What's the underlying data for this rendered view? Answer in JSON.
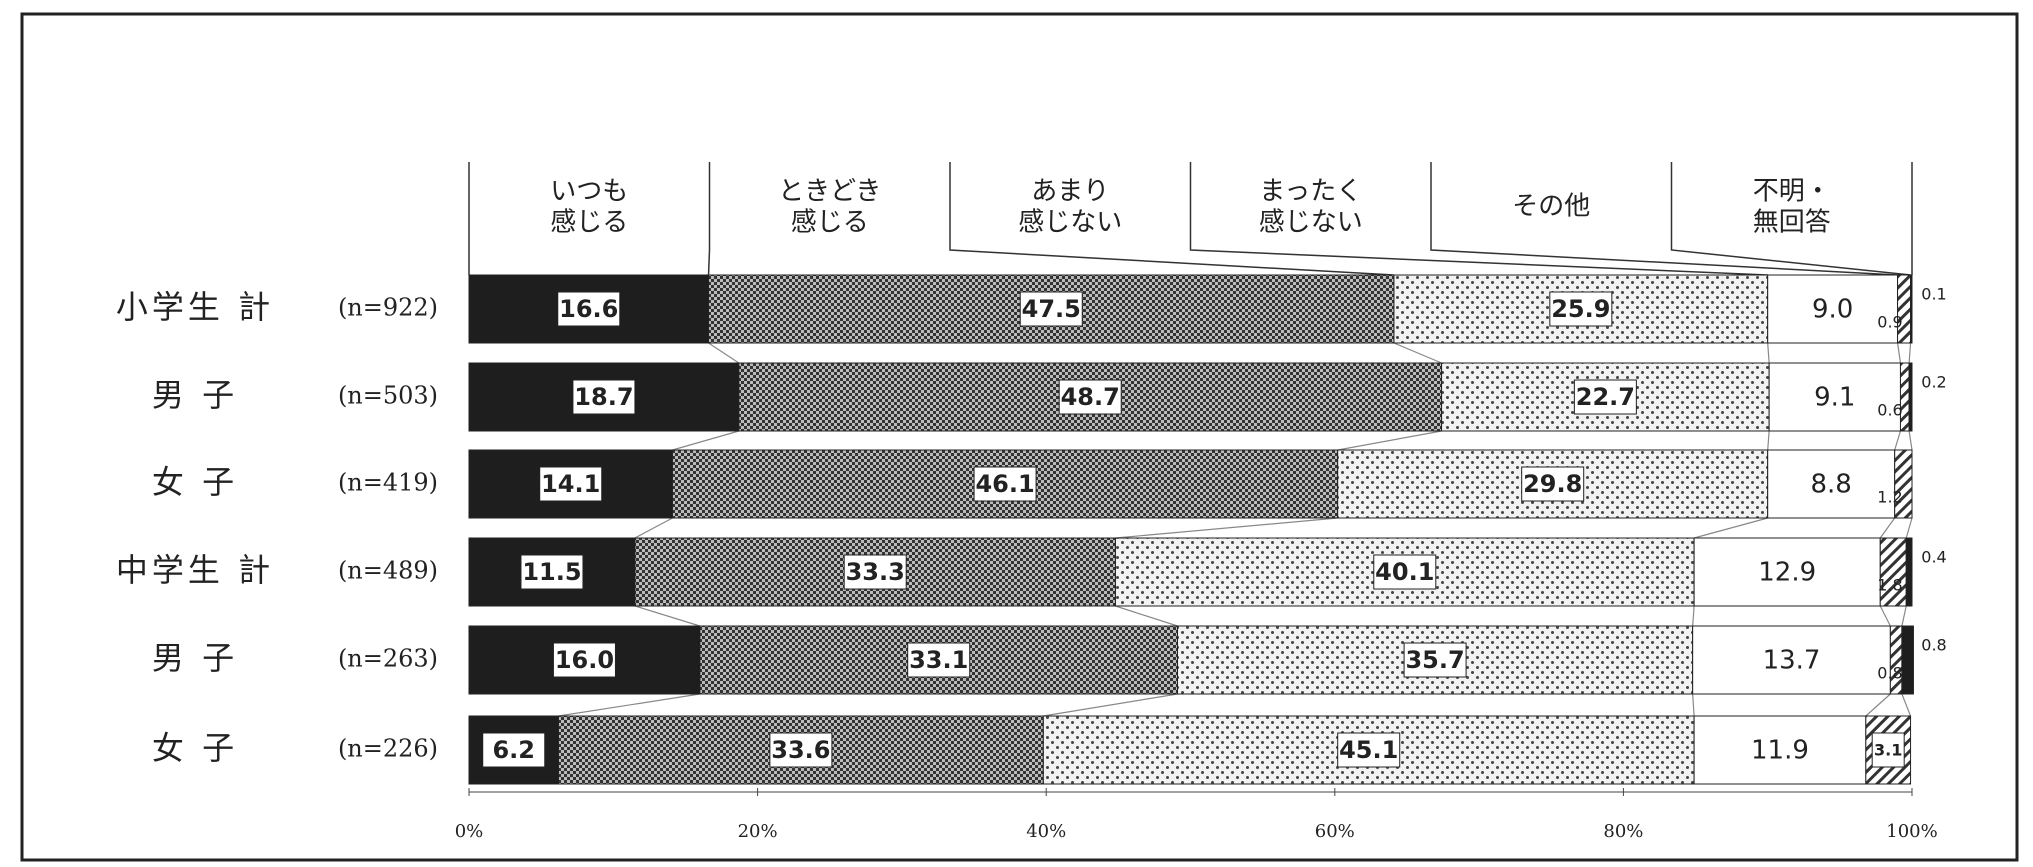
{
  "chart_data": {
    "type": "stacked_bar_horizontal",
    "categories": [
      "小学生 計",
      "男 子",
      "女 子",
      "中学生 計",
      "男 子",
      "女 子"
    ],
    "sample_sizes": [
      "(n=922)",
      "(n=503)",
      "(n=419)",
      "(n=489)",
      "(n=263)",
      "(n=226)"
    ],
    "series": [
      {
        "name": "いつも\n感じる",
        "color": "#1e1e1e",
        "pattern": "solid",
        "values": [
          16.6,
          18.7,
          14.1,
          11.5,
          16.0,
          6.2
        ],
        "value_labels": [
          "16.6",
          "18.7",
          "14.1",
          "11.5",
          "16.0",
          "6.2"
        ]
      },
      {
        "name": "ときどき\n感じる",
        "color": "#3a3a3a",
        "pattern": "checker",
        "values": [
          47.5,
          48.7,
          46.1,
          33.3,
          33.1,
          33.6
        ]
      },
      {
        "name": "あまり\n感じない",
        "color": "#555555",
        "pattern": "dots",
        "values": [
          25.9,
          22.7,
          29.8,
          40.1,
          35.7,
          45.1
        ]
      },
      {
        "name": "まったく\n感じない",
        "color": "#ffffff",
        "pattern": "none",
        "values": [
          9.0,
          9.1,
          8.8,
          12.9,
          13.7,
          11.9
        ],
        "value_labels": [
          "9.0",
          "9.1",
          "8.8",
          "12.9",
          "13.7",
          "11.9"
        ]
      },
      {
        "name": "その他",
        "color": "#333333",
        "pattern": "hatch",
        "values": [
          0.9,
          0.6,
          1.2,
          1.8,
          0.8,
          3.1
        ]
      },
      {
        "name": "不明・\n無回答",
        "color": "#1e1e1e",
        "pattern": "solid",
        "values": [
          0.1,
          0.2,
          null,
          0.4,
          0.8,
          null
        ]
      }
    ],
    "xlim": [
      0,
      100
    ],
    "xticks": [
      {
        "value": 0,
        "label": "0%"
      },
      {
        "value": 20,
        "label": "20%"
      },
      {
        "value": 40,
        "label": "40%"
      },
      {
        "value": 60,
        "label": "60%"
      },
      {
        "value": 80,
        "label": "80%"
      },
      {
        "value": 100,
        "label": "100%"
      }
    ]
  }
}
